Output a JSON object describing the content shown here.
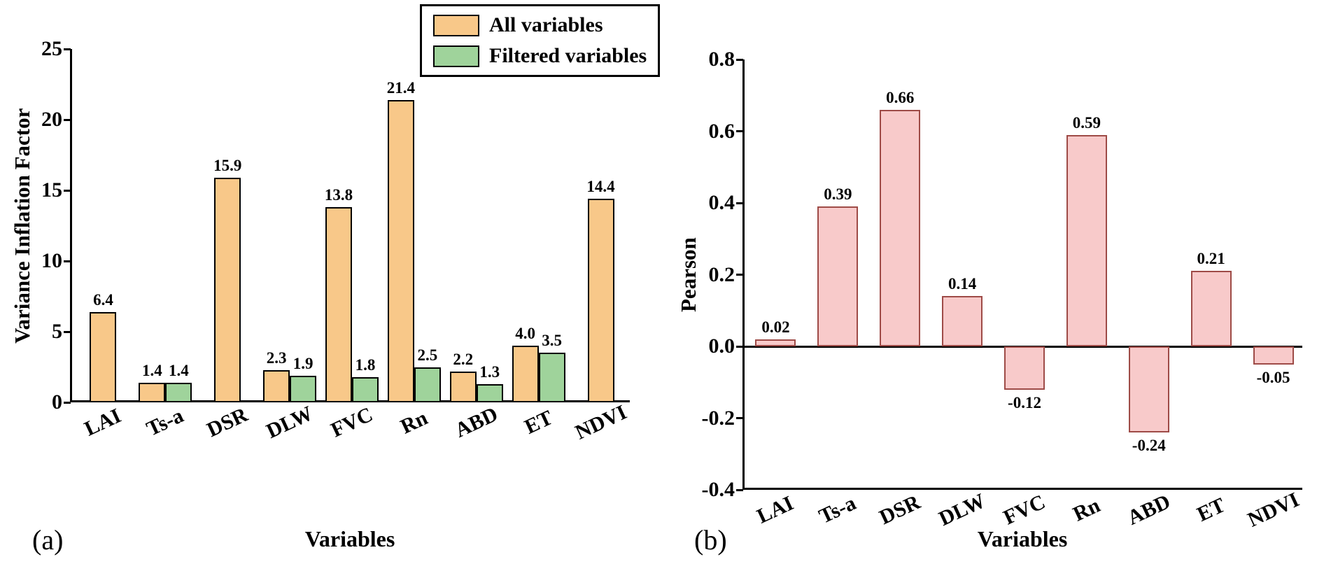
{
  "figure": {
    "background": "#ffffff"
  },
  "legend": {
    "items": [
      {
        "label": "All variables",
        "color": "#F8C889",
        "border": "#000000"
      },
      {
        "label": "Filtered variables",
        "color": "#9FD39B",
        "border": "#000000"
      }
    ]
  },
  "chart_data": [
    {
      "id": "vif",
      "type": "bar",
      "panel_label": "(a)",
      "xlabel": "Variables",
      "ylabel": "Variance Inflation Factor",
      "ylim": [
        0,
        25
      ],
      "grid": false,
      "legend_position": "top-center",
      "yticks": [
        {
          "v": 0,
          "label": "0"
        },
        {
          "v": 5,
          "label": "5"
        },
        {
          "v": 10,
          "label": "10"
        },
        {
          "v": 15,
          "label": "15"
        },
        {
          "v": 20,
          "label": "20"
        },
        {
          "v": 25,
          "label": "25"
        }
      ],
      "categories": [
        "LAI",
        "Ts-a",
        "DSR",
        "DLW",
        "FVC",
        "Rn",
        "ABD",
        "ET",
        "NDVI"
      ],
      "series": [
        {
          "name": "All variables",
          "color": "#F8C889",
          "border": "#000000",
          "values": [
            6.4,
            1.4,
            15.9,
            2.3,
            13.8,
            21.4,
            2.2,
            4.0,
            14.4
          ],
          "labels": [
            "6.4",
            "1.4",
            "15.9",
            "2.3",
            "13.8",
            "21.4",
            "2.2",
            "4.0",
            "14.4"
          ]
        },
        {
          "name": "Filtered variables",
          "color": "#9FD39B",
          "border": "#000000",
          "values": [
            null,
            1.4,
            null,
            1.9,
            1.8,
            2.5,
            1.3,
            3.5,
            null
          ],
          "labels": [
            null,
            "1.4",
            null,
            "1.9",
            "1.8",
            "2.5",
            "1.3",
            "3.5",
            null
          ]
        }
      ]
    },
    {
      "id": "pearson",
      "type": "bar",
      "panel_label": "(b)",
      "xlabel": "Variables",
      "ylabel": "Pearson",
      "ylim": [
        -0.4,
        0.8
      ],
      "grid": false,
      "yticks": [
        {
          "v": 0.8,
          "label": "0.8"
        },
        {
          "v": 0.6,
          "label": "0.6"
        },
        {
          "v": 0.4,
          "label": "0.4"
        },
        {
          "v": 0.2,
          "label": "0.2"
        },
        {
          "v": 0.0,
          "label": "0.0"
        },
        {
          "v": -0.2,
          "label": "-0.2"
        },
        {
          "v": -0.4,
          "label": "-0.4"
        }
      ],
      "categories": [
        "LAI",
        "Ts-a",
        "DSR",
        "DLW",
        "FVC",
        "Rn",
        "ABD",
        "ET",
        "NDVI"
      ],
      "series": [
        {
          "name": "Pearson",
          "color": "#F8CACA",
          "border": "#9E4B47",
          "values": [
            0.02,
            0.39,
            0.66,
            0.14,
            -0.12,
            0.59,
            -0.24,
            0.21,
            -0.05
          ],
          "labels": [
            "0.02",
            "0.39",
            "0.66",
            "0.14",
            "-0.12",
            "0.59",
            "-0.24",
            "0.21",
            "-0.05"
          ]
        }
      ]
    }
  ]
}
